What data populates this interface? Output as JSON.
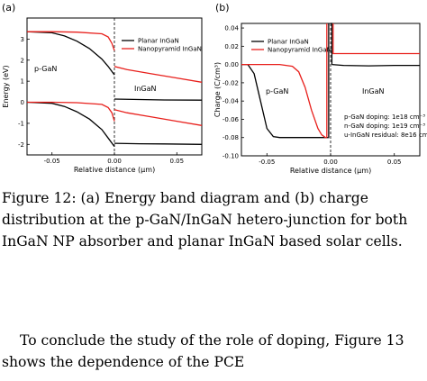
{
  "figure": {
    "panel_a_label": "(a)",
    "panel_b_label": "(b)",
    "caption_label": "Figure 12:",
    "caption_text": "(a) Energy band diagram and (b) charge distribution at the p-GaN/InGaN hetero-junction for both InGaN NP absorber and planar InGaN based solar cells."
  },
  "body_text": "To conclude the study of the role of doping, Figure 13 shows the dependence of the PCE",
  "chart_data": [
    {
      "type": "line",
      "panel": "a",
      "xlabel": "Relative distance (µm)",
      "ylabel": "Energy (eV)",
      "xlim": [
        -0.07,
        0.07
      ],
      "ylim": [
        -2.5,
        4.0
      ],
      "xticks": [
        -0.05,
        0.0,
        0.05
      ],
      "xtick_labels": [
        "-0.05",
        "0.00",
        "0.05"
      ],
      "yticks": [
        -2,
        -1,
        0,
        1,
        2,
        3
      ],
      "ytick_labels": [
        "-2",
        "-1",
        "0",
        "1",
        "2",
        "3"
      ],
      "legend": [
        "Planar InGaN",
        "Nanopyramid InGaN"
      ],
      "legend_position": "top-right",
      "annotations": [
        "p-GaN",
        "InGaN"
      ],
      "series": [
        {
          "name": "Planar InGaN",
          "color": "#000000",
          "segments": [
            {
              "x": [
                -0.07,
                -0.05,
                -0.04,
                -0.03,
                -0.02,
                -0.01,
                -0.005,
                0.0
              ],
              "y": [
                3.35,
                3.3,
                3.15,
                2.9,
                2.55,
                2.05,
                1.7,
                1.3
              ]
            },
            {
              "x": [
                0.0,
                0.02,
                0.04,
                0.07
              ],
              "y": [
                0.15,
                0.13,
                0.11,
                0.1
              ]
            },
            {
              "x": [
                -0.07,
                -0.05,
                -0.04,
                -0.03,
                -0.02,
                -0.01,
                -0.005,
                0.0
              ],
              "y": [
                0.0,
                -0.05,
                -0.2,
                -0.45,
                -0.8,
                -1.3,
                -1.7,
                -2.1
              ]
            },
            {
              "x": [
                0.0,
                0.02,
                0.04,
                0.07
              ],
              "y": [
                -1.95,
                -1.97,
                -1.98,
                -2.0
              ]
            }
          ]
        },
        {
          "name": "Nanopyramid InGaN",
          "color": "#e8201c",
          "segments": [
            {
              "x": [
                -0.07,
                -0.05,
                -0.03,
                -0.01,
                -0.005,
                -0.002,
                0.0
              ],
              "y": [
                3.35,
                3.35,
                3.33,
                3.25,
                3.1,
                2.8,
                2.45
              ]
            },
            {
              "x": [
                0.0,
                0.01,
                0.03,
                0.05,
                0.07
              ],
              "y": [
                1.7,
                1.55,
                1.35,
                1.15,
                0.95
              ]
            },
            {
              "x": [
                -0.07,
                -0.05,
                -0.03,
                -0.01,
                -0.005,
                -0.002,
                0.0
              ],
              "y": [
                0.0,
                0.0,
                -0.02,
                -0.1,
                -0.25,
                -0.5,
                -0.9
              ]
            },
            {
              "x": [
                0.0,
                0.01,
                0.03,
                0.05,
                0.07
              ],
              "y": [
                -0.35,
                -0.5,
                -0.7,
                -0.9,
                -1.1
              ]
            }
          ]
        }
      ]
    },
    {
      "type": "line",
      "panel": "b",
      "xlabel": "Relative distance (µm)",
      "ylabel": "Charge (C/cm³)",
      "xlim": [
        -0.07,
        0.07
      ],
      "ylim": [
        -0.1,
        0.045
      ],
      "xticks": [
        -0.05,
        0.0,
        0.05
      ],
      "xtick_labels": [
        "-0.05",
        "0.00",
        "0.05"
      ],
      "yticks": [
        0.04,
        0.02,
        0.0,
        -0.02,
        -0.04,
        -0.06,
        -0.08,
        -0.1
      ],
      "ytick_labels": [
        "0.04",
        "0.02",
        "0.00",
        "-0.02",
        "-0.04",
        "-0.06",
        "-0.08",
        "-0.10"
      ],
      "legend": [
        "Planar InGaN",
        "Nanopyramid InGaN"
      ],
      "legend_position": "top-left",
      "annotations": [
        "p-GaN",
        "InGaN"
      ],
      "doping_notes": [
        "p-GaN doping: 1e18 cm⁻³",
        "n-GaN doping: 1e19 cm⁻³",
        "u-InGaN residual: 8e16 cm⁻³"
      ],
      "series": [
        {
          "name": "Planar InGaN",
          "color": "#000000",
          "segments": [
            {
              "x": [
                -0.07,
                -0.065,
                -0.06,
                -0.055,
                -0.05,
                -0.045,
                -0.04,
                -0.02,
                -0.003,
                -0.002
              ],
              "y": [
                0.0,
                0.0,
                -0.01,
                -0.04,
                -0.07,
                -0.079,
                -0.08,
                -0.08,
                -0.08,
                -0.08
              ]
            },
            {
              "x": [
                -0.002,
                -0.0015,
                -0.0015
              ],
              "y": [
                -0.08,
                -0.08,
                0.045
              ]
            },
            {
              "x": [
                0.0,
                0.001,
                0.001
              ],
              "y": [
                0.045,
                0.045,
                0.0
              ]
            },
            {
              "x": [
                0.001,
                0.01,
                0.03,
                0.05,
                0.07
              ],
              "y": [
                0.0,
                -0.001,
                -0.0015,
                -0.001,
                -0.001
              ]
            }
          ]
        },
        {
          "name": "Nanopyramid InGaN",
          "color": "#e8201c",
          "segments": [
            {
              "x": [
                -0.07,
                -0.04,
                -0.03,
                -0.025,
                -0.02,
                -0.015,
                -0.01,
                -0.007,
                -0.004,
                -0.003
              ],
              "y": [
                0.0,
                0.0,
                -0.002,
                -0.008,
                -0.025,
                -0.05,
                -0.07,
                -0.077,
                -0.08,
                -0.08
              ]
            },
            {
              "x": [
                -0.003,
                -0.003
              ],
              "y": [
                -0.08,
                0.045
              ]
            },
            {
              "x": [
                0.002,
                0.002,
                0.07
              ],
              "y": [
                0.045,
                0.012,
                0.012
              ]
            }
          ]
        }
      ]
    }
  ]
}
